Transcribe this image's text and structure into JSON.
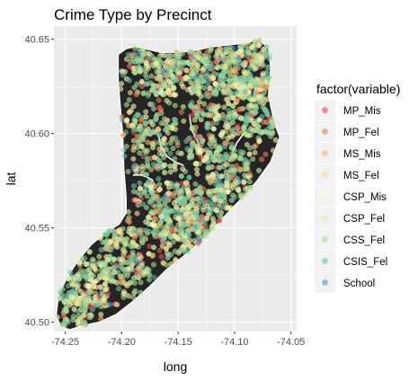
{
  "chart_data": {
    "type": "scatter",
    "title": "Crime Type by Precinct",
    "xlabel": "long",
    "ylabel": "lat",
    "xlim": [
      -74.26,
      -74.045
    ],
    "ylim": [
      40.495,
      40.657
    ],
    "xticks": [
      -74.25,
      -74.2,
      -74.15,
      -74.1,
      -74.05
    ],
    "xtick_labels": [
      "-74.25",
      "-74.20",
      "-74.15",
      "-74.10",
      "-74.05"
    ],
    "yticks": [
      40.5,
      40.55,
      40.6,
      40.65
    ],
    "ytick_labels": [
      "40.50",
      "40.55",
      "40.60",
      "40.65"
    ],
    "grid": true,
    "background_color": "#ebebeb",
    "land_color": "#252525",
    "legend": {
      "title": "factor(variable)",
      "placement": "right",
      "items": [
        {
          "label": "MP_Mis",
          "color": "#e0525a"
        },
        {
          "label": "MP_Fel",
          "color": "#ef8158"
        },
        {
          "label": "MS_Mis",
          "color": "#f6b16c"
        },
        {
          "label": "MS_Fel",
          "color": "#f8dc92"
        },
        {
          "label": "CSP_Mis",
          "color": "#fbf6b6"
        },
        {
          "label": "CSP_Fel",
          "color": "#e5f19f"
        },
        {
          "label": "CSS_Fel",
          "color": "#a9dc99"
        },
        {
          "label": "CSIS_Fel",
          "color": "#6cc3a5"
        },
        {
          "label": "School",
          "color": "#4d9cc4"
        }
      ]
    },
    "landmass_outline": [
      [
        -74.2535,
        40.4975
      ],
      [
        -74.258,
        40.503
      ],
      [
        -74.256,
        40.514
      ],
      [
        -74.248,
        40.524
      ],
      [
        -74.238,
        40.533
      ],
      [
        -74.227,
        40.541
      ],
      [
        -74.213,
        40.548
      ],
      [
        -74.202,
        40.552
      ],
      [
        -74.196,
        40.558
      ],
      [
        -74.196,
        40.566
      ],
      [
        -74.198,
        40.581
      ],
      [
        -74.199,
        40.599
      ],
      [
        -74.201,
        40.613
      ],
      [
        -74.203,
        40.628
      ],
      [
        -74.203,
        40.642
      ],
      [
        -74.196,
        40.645
      ],
      [
        -74.188,
        40.646
      ],
      [
        -74.18,
        40.645
      ],
      [
        -74.165,
        40.643
      ],
      [
        -74.15,
        40.643
      ],
      [
        -74.135,
        40.644
      ],
      [
        -74.12,
        40.646
      ],
      [
        -74.105,
        40.647
      ],
      [
        -74.09,
        40.648
      ],
      [
        -74.078,
        40.65
      ],
      [
        -74.07,
        40.645
      ],
      [
        -74.068,
        40.635
      ],
      [
        -74.07,
        40.62
      ],
      [
        -74.065,
        40.606
      ],
      [
        -74.06,
        40.598
      ],
      [
        -74.068,
        40.585
      ],
      [
        -74.08,
        40.575
      ],
      [
        -74.093,
        40.566
      ],
      [
        -74.103,
        40.56
      ],
      [
        -74.115,
        40.552
      ],
      [
        -74.13,
        40.543
      ],
      [
        -74.145,
        40.535
      ],
      [
        -74.16,
        40.528
      ],
      [
        -74.175,
        40.519
      ],
      [
        -74.19,
        40.511
      ],
      [
        -74.205,
        40.504
      ],
      [
        -74.22,
        40.5
      ],
      [
        -74.235,
        40.498
      ],
      [
        -74.246,
        40.496
      ]
    ],
    "series": [
      {
        "name": "CSS_Fel",
        "share": 0.3
      },
      {
        "name": "CSIS_Fel",
        "share": 0.2
      },
      {
        "name": "CSP_Mis",
        "share": 0.17
      },
      {
        "name": "CSP_Fel",
        "share": 0.12
      },
      {
        "name": "MS_Fel",
        "share": 0.08
      },
      {
        "name": "MS_Mis",
        "share": 0.04
      },
      {
        "name": "MP_Mis",
        "share": 0.035
      },
      {
        "name": "MP_Fel",
        "share": 0.035
      },
      {
        "name": "School",
        "share": 0.02
      }
    ]
  }
}
